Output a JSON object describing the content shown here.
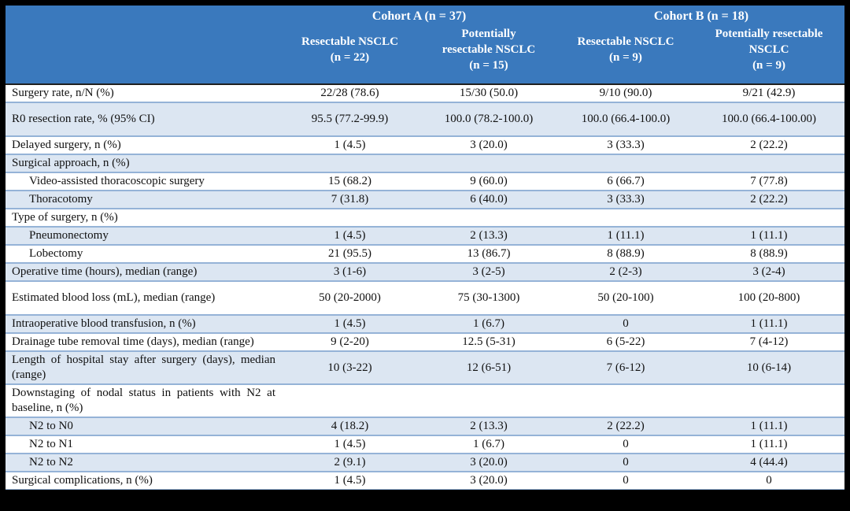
{
  "colors": {
    "header_bg": "#3a79bd",
    "header_text": "#ffffff",
    "stripe_bg": "#dce6f2",
    "row_border": "#95b3d7",
    "dark_border": "#1f1f1f",
    "frame_bg": "#000000"
  },
  "table": {
    "header": {
      "groups": [
        {
          "label": "Cohort A (n = 37)"
        },
        {
          "label": "Cohort B (n = 18)"
        }
      ],
      "columns": [
        "Resectable NSCLC\n(n = 22)",
        "Potentially\nresectable NSCLC\n(n = 15)",
        "Resectable NSCLC\n(n = 9)",
        "Potentially resectable\nNSCLC\n(n = 9)"
      ]
    },
    "rows": [
      {
        "label": "Surgery rate, n/N (%)",
        "indent": false,
        "values": [
          "22/28 (78.6)",
          "15/30 (50.0)",
          "9/10 (90.0)",
          "9/21 (42.9)"
        ]
      },
      {
        "label": "R0 resection rate, % (95% CI)",
        "indent": false,
        "values": [
          "95.5 (77.2-99.9)",
          "100.0 (78.2-100.0)",
          "100.0 (66.4-100.0)",
          "100.0 (66.4-100.00)"
        ]
      },
      {
        "label": "Delayed surgery, n (%)",
        "indent": false,
        "values": [
          "1 (4.5)",
          "3 (20.0)",
          "3 (33.3)",
          "2 (22.2)"
        ]
      },
      {
        "label": "Surgical approach, n (%)",
        "indent": false,
        "values": [
          "",
          "",
          "",
          ""
        ]
      },
      {
        "label": "Video-assisted thoracoscopic surgery",
        "indent": true,
        "values": [
          "15 (68.2)",
          "9 (60.0)",
          "6 (66.7)",
          "7 (77.8)"
        ]
      },
      {
        "label": "Thoracotomy",
        "indent": true,
        "values": [
          "7 (31.8)",
          "6 (40.0)",
          "3 (33.3)",
          "2 (22.2)"
        ]
      },
      {
        "label": "Type of surgery, n (%)",
        "indent": false,
        "values": [
          "",
          "",
          "",
          ""
        ]
      },
      {
        "label": "Pneumonectomy",
        "indent": true,
        "values": [
          "1 (4.5)",
          "2 (13.3)",
          "1 (11.1)",
          "1 (11.1)"
        ]
      },
      {
        "label": "Lobectomy",
        "indent": true,
        "values": [
          "21 (95.5)",
          "13 (86.7)",
          "8 (88.9)",
          "8 (88.9)"
        ]
      },
      {
        "label": "Operative time (hours), median (range)",
        "indent": false,
        "values": [
          "3 (1-6)",
          "3 (2-5)",
          "2 (2-3)",
          "3 (2-4)"
        ]
      },
      {
        "label": "Estimated blood loss (mL), median (range)",
        "indent": false,
        "values": [
          "50 (20-2000)",
          "75 (30-1300)",
          "50 (20-100)",
          "100 (20-800)"
        ]
      },
      {
        "label": "Intraoperative blood transfusion, n (%)",
        "indent": false,
        "values": [
          "1 (4.5)",
          "1 (6.7)",
          "0",
          "1 (11.1)"
        ]
      },
      {
        "label": "Drainage tube removal time (days), median (range)",
        "indent": false,
        "values": [
          "9 (2-20)",
          "12.5 (5-31)",
          "6 (5-22)",
          "7 (4-12)"
        ]
      },
      {
        "label": "Length of hospital stay after surgery (days), median (range)",
        "indent": false,
        "values": [
          "10 (3-22)",
          "12 (6-51)",
          "7 (6-12)",
          "10 (6-14)"
        ]
      },
      {
        "label": "Downstaging of nodal status in patients with N2 at baseline, n (%)",
        "indent": false,
        "values": [
          "",
          "",
          "",
          ""
        ]
      },
      {
        "label": "N2 to N0",
        "indent": true,
        "values": [
          "4 (18.2)",
          "2 (13.3)",
          "2 (22.2)",
          "1 (11.1)"
        ]
      },
      {
        "label": "N2 to N1",
        "indent": true,
        "values": [
          "1 (4.5)",
          "1 (6.7)",
          "0",
          "1 (11.1)"
        ]
      },
      {
        "label": "N2 to N2",
        "indent": true,
        "values": [
          "2 (9.1)",
          "3 (20.0)",
          "0",
          "4 (44.4)"
        ]
      },
      {
        "label": "Surgical complications, n (%)",
        "indent": false,
        "values": [
          "1 (4.5)",
          "3 (20.0)",
          "0",
          "0"
        ]
      }
    ]
  }
}
